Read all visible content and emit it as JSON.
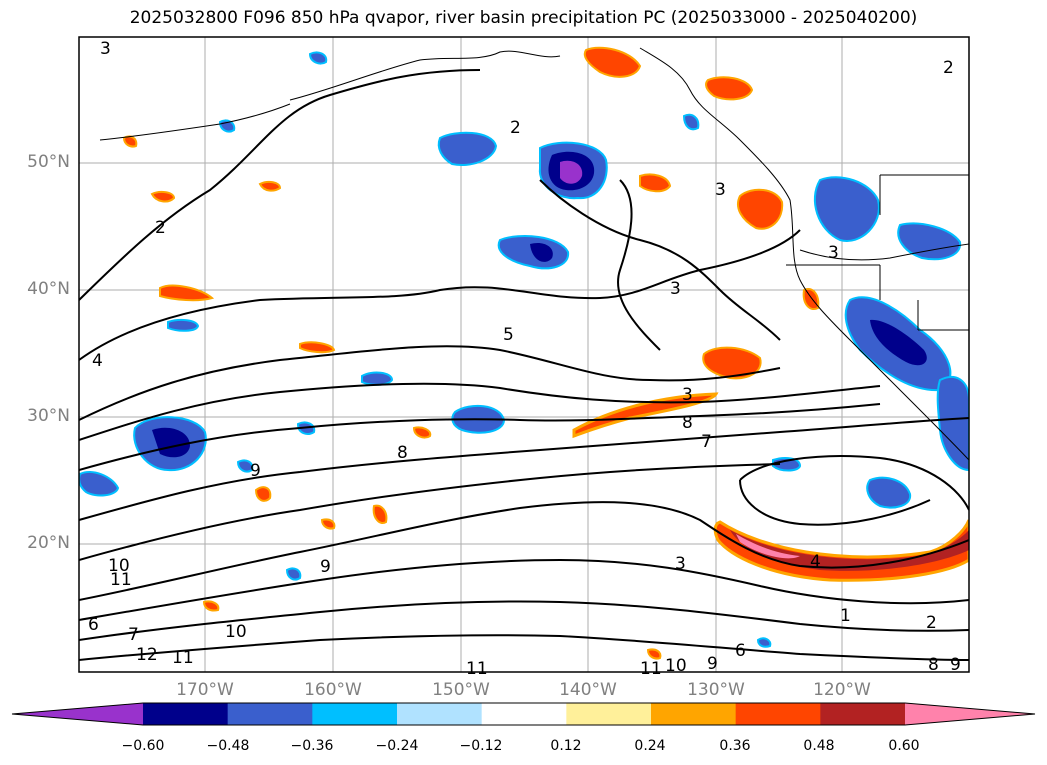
{
  "title": "2025032800 F096 850 hPa qvapor, river basin precipitation PC (2025033000 - 2025040200)",
  "lat_labels": [
    "50°N",
    "40°N",
    "30°N",
    "20°N"
  ],
  "lon_labels": [
    "170°W",
    "160°W",
    "150°W",
    "140°W",
    "130°W",
    "120°W"
  ],
  "colorbar": {
    "colors": [
      "#9932cc",
      "#00008b",
      "#3a5fcd",
      "#00bfff",
      "#b0e2ff",
      "#ffffff",
      "#fff09a",
      "#ffa500",
      "#ff4500",
      "#b22222",
      "#ff82ab"
    ],
    "ticks": [
      "−0.60",
      "−0.48",
      "−0.36",
      "−0.24",
      "−0.12",
      "0.12",
      "0.24",
      "0.36",
      "0.48",
      "0.60"
    ]
  },
  "contour_labels": [
    "3",
    "2",
    "2",
    "2",
    "3",
    "4",
    "5",
    "3",
    "3",
    "3",
    "8",
    "7",
    "8",
    "9",
    "9",
    "10",
    "11",
    "3",
    "4",
    "1",
    "2",
    "6",
    "7",
    "10",
    "12",
    "11",
    "11",
    "11",
    "10",
    "9",
    "6",
    "8",
    "9"
  ]
}
